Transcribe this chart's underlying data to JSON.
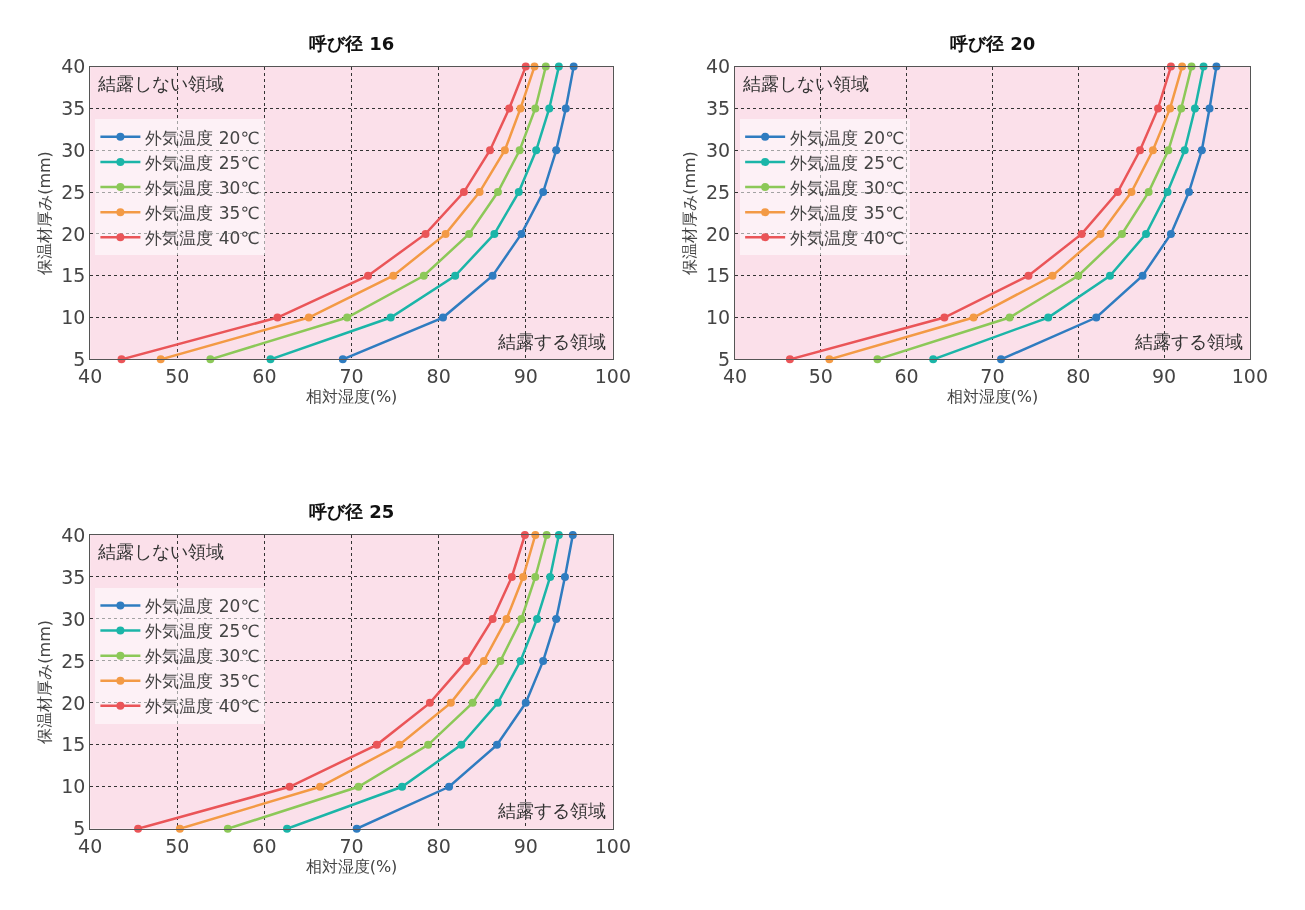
{
  "chart_data": [
    {
      "type": "line",
      "title": "呼び径 16",
      "xlabel": "相対湿度(%)",
      "ylabel": "保温材厚み(mm)",
      "xlim": [
        40,
        100
      ],
      "ylim": [
        5,
        40
      ],
      "xticks": [
        40,
        50,
        60,
        70,
        80,
        90,
        100
      ],
      "yticks": [
        5,
        10,
        15,
        20,
        25,
        30,
        35,
        40
      ],
      "grid": true,
      "legend": "top left",
      "marker": "circle",
      "line_style": "solid",
      "annotations": [
        "結露しない領域",
        "結露する領域"
      ],
      "series": [
        {
          "name": "外気温度 20℃",
          "color": "#2f7cc0",
          "x": [
            69.0,
            80.5,
            86.2,
            89.5,
            92.0,
            93.5,
            94.6,
            95.5
          ],
          "values": [
            5,
            10,
            15,
            20,
            25,
            30,
            35,
            40
          ]
        },
        {
          "name": "外気温度 25℃",
          "color": "#1bb5a8",
          "x": [
            60.7,
            74.5,
            81.9,
            86.4,
            89.2,
            91.2,
            92.7,
            93.8
          ],
          "values": [
            5,
            10,
            15,
            20,
            25,
            30,
            35,
            40
          ]
        },
        {
          "name": "外気温度 30℃",
          "color": "#8cc858",
          "x": [
            53.8,
            69.5,
            78.3,
            83.5,
            86.8,
            89.3,
            91.1,
            92.3
          ],
          "values": [
            5,
            10,
            15,
            20,
            25,
            30,
            35,
            40
          ]
        },
        {
          "name": "外気温度 35℃",
          "color": "#f39a45",
          "x": [
            48.1,
            65.1,
            74.8,
            80.8,
            84.7,
            87.6,
            89.4,
            91.0
          ],
          "values": [
            5,
            10,
            15,
            20,
            25,
            30,
            35,
            40
          ]
        },
        {
          "name": "外気温度 40℃",
          "color": "#ea5558",
          "x": [
            43.6,
            61.5,
            71.9,
            78.5,
            82.9,
            85.9,
            88.1,
            90.0
          ],
          "values": [
            5,
            10,
            15,
            20,
            25,
            30,
            35,
            40
          ]
        }
      ]
    },
    {
      "type": "line",
      "title": "呼び径 20",
      "xlabel": "相対湿度(%)",
      "ylabel": "保温材厚み(mm)",
      "xlim": [
        40,
        100
      ],
      "ylim": [
        5,
        40
      ],
      "xticks": [
        40,
        50,
        60,
        70,
        80,
        90,
        100
      ],
      "yticks": [
        5,
        10,
        15,
        20,
        25,
        30,
        35,
        40
      ],
      "grid": true,
      "legend": "top left",
      "marker": "circle",
      "line_style": "solid",
      "annotations": [
        "結露しない領域",
        "結露する領域"
      ],
      "series": [
        {
          "name": "外気温度 20℃",
          "color": "#2f7cc0",
          "x": [
            71.0,
            82.1,
            87.5,
            90.8,
            92.9,
            94.4,
            95.3,
            96.1
          ],
          "values": [
            5,
            10,
            15,
            20,
            25,
            30,
            35,
            40
          ]
        },
        {
          "name": "外気温度 25℃",
          "color": "#1bb5a8",
          "x": [
            63.1,
            76.5,
            83.7,
            87.9,
            90.4,
            92.4,
            93.6,
            94.6
          ],
          "values": [
            5,
            10,
            15,
            20,
            25,
            30,
            35,
            40
          ]
        },
        {
          "name": "外気温度 30℃",
          "color": "#8cc858",
          "x": [
            56.6,
            72.0,
            80.0,
            85.1,
            88.2,
            90.5,
            92.0,
            93.2
          ],
          "values": [
            5,
            10,
            15,
            20,
            25,
            30,
            35,
            40
          ]
        },
        {
          "name": "外気温度 35℃",
          "color": "#f39a45",
          "x": [
            51.0,
            67.8,
            77.0,
            82.6,
            86.2,
            88.7,
            90.7,
            92.1
          ],
          "values": [
            5,
            10,
            15,
            20,
            25,
            30,
            35,
            40
          ]
        },
        {
          "name": "外気温度 40℃",
          "color": "#ea5558",
          "x": [
            46.4,
            64.4,
            74.2,
            80.4,
            84.6,
            87.2,
            89.3,
            90.8
          ],
          "values": [
            5,
            10,
            15,
            20,
            25,
            30,
            35,
            40
          ]
        }
      ]
    },
    {
      "type": "line",
      "title": "呼び径 25",
      "xlabel": "相対湿度(%)",
      "ylabel": "保温材厚み(mm)",
      "xlim": [
        40,
        100
      ],
      "ylim": [
        5,
        40
      ],
      "xticks": [
        40,
        50,
        60,
        70,
        80,
        90,
        100
      ],
      "yticks": [
        5,
        10,
        15,
        20,
        25,
        30,
        35,
        40
      ],
      "grid": true,
      "legend": "top left",
      "marker": "circle",
      "line_style": "solid",
      "annotations": [
        "結露しない領域",
        "結露する領域"
      ],
      "series": [
        {
          "name": "外気温度 20℃",
          "color": "#2f7cc0",
          "x": [
            70.6,
            81.2,
            86.7,
            90.0,
            92.0,
            93.5,
            94.5,
            95.4
          ],
          "values": [
            5,
            10,
            15,
            20,
            25,
            30,
            35,
            40
          ]
        },
        {
          "name": "外気温度 25℃",
          "color": "#1bb5a8",
          "x": [
            62.6,
            75.8,
            82.6,
            86.8,
            89.4,
            91.3,
            92.8,
            93.8
          ],
          "values": [
            5,
            10,
            15,
            20,
            25,
            30,
            35,
            40
          ]
        },
        {
          "name": "外気温度 30℃",
          "color": "#8cc858",
          "x": [
            55.8,
            70.8,
            78.8,
            83.9,
            87.1,
            89.5,
            91.1,
            92.4
          ],
          "values": [
            5,
            10,
            15,
            20,
            25,
            30,
            35,
            40
          ]
        },
        {
          "name": "外気温度 35℃",
          "color": "#f39a45",
          "x": [
            50.3,
            66.4,
            75.5,
            81.4,
            85.2,
            87.8,
            89.7,
            91.1
          ],
          "values": [
            5,
            10,
            15,
            20,
            25,
            30,
            35,
            40
          ]
        },
        {
          "name": "外気温度 40℃",
          "color": "#ea5558",
          "x": [
            45.5,
            62.9,
            72.9,
            79.0,
            83.2,
            86.2,
            88.4,
            89.9
          ],
          "values": [
            5,
            10,
            15,
            20,
            25,
            30,
            35,
            40
          ]
        }
      ]
    }
  ]
}
